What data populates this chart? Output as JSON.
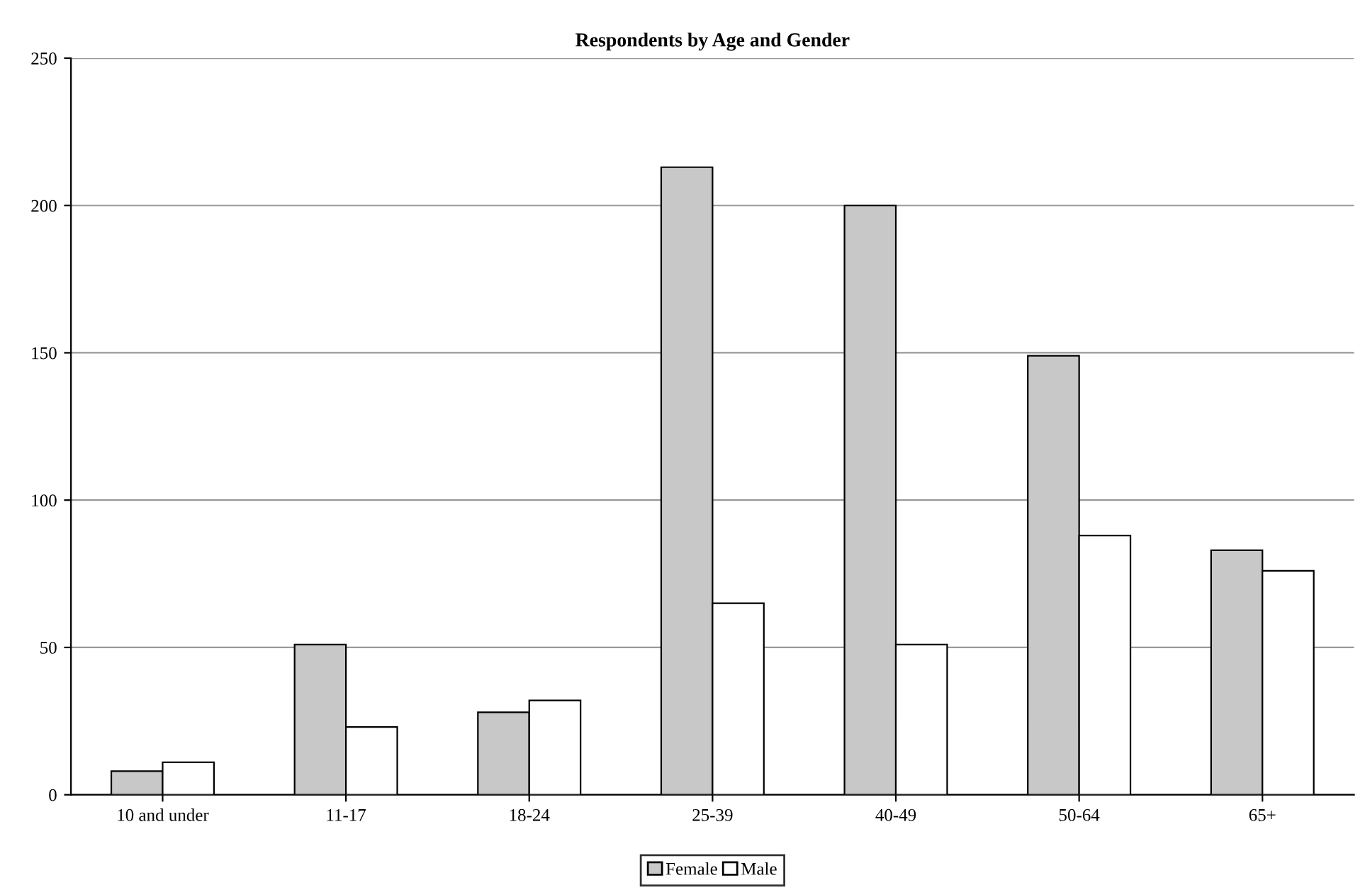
{
  "chart_data": {
    "type": "bar",
    "title": "Respondents by Age and Gender",
    "categories": [
      "10 and under",
      "11-17",
      "18-24",
      "25-39",
      "40-49",
      "50-64",
      "65+"
    ],
    "series": [
      {
        "name": "Female",
        "color": "#c8c8c8",
        "values": [
          8,
          51,
          28,
          213,
          200,
          149,
          83
        ]
      },
      {
        "name": "Male",
        "color": "#ffffff",
        "values": [
          11,
          23,
          32,
          65,
          51,
          88,
          76
        ]
      }
    ],
    "ylim": [
      0,
      250
    ],
    "yticks": [
      0,
      50,
      100,
      150,
      200,
      250
    ],
    "grid": "y",
    "legend": "bottom"
  }
}
